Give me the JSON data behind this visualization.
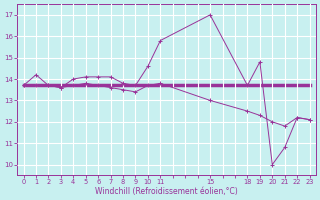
{
  "xlabel": "Windchill (Refroidissement éolien,°C)",
  "bg_color": "#c8f0f0",
  "line_color": "#993399",
  "grid_color": "#ffffff",
  "ylim": [
    9.5,
    17.5
  ],
  "yticks": [
    10,
    11,
    12,
    13,
    14,
    15,
    16,
    17
  ],
  "xtick_labels": [
    "0",
    "1",
    "2",
    "3",
    "4",
    "5",
    "6",
    "7",
    "8",
    "9",
    "10",
    "11",
    "",
    "",
    "",
    "15",
    "",
    "",
    "18",
    "19",
    "20",
    "21",
    "22",
    "23"
  ],
  "series1_x": [
    0,
    1,
    2,
    3,
    4,
    5,
    6,
    7,
    8,
    9,
    10,
    11,
    15,
    18,
    19,
    20,
    21,
    22,
    23
  ],
  "series1_y": [
    13.7,
    14.2,
    13.7,
    13.6,
    14.0,
    14.1,
    14.1,
    14.1,
    13.8,
    13.7,
    14.6,
    15.8,
    17.0,
    13.7,
    14.8,
    10.0,
    10.8,
    12.2,
    12.1
  ],
  "series2_x": [
    0,
    1,
    2,
    3,
    4,
    5,
    6,
    7,
    8,
    9,
    10,
    11,
    12,
    13,
    14,
    15,
    16,
    17,
    18,
    19,
    20,
    21,
    22,
    23
  ],
  "series2_y": [
    13.7,
    13.7,
    13.7,
    13.7,
    13.7,
    13.7,
    13.7,
    13.7,
    13.7,
    13.7,
    13.7,
    13.7,
    13.7,
    13.7,
    13.7,
    13.7,
    13.7,
    13.7,
    13.7,
    13.7,
    13.7,
    13.7,
    13.7,
    13.7
  ],
  "series3_x": [
    0,
    1,
    2,
    3,
    4,
    5,
    6,
    7,
    8,
    9,
    10,
    11,
    15,
    18,
    19,
    20,
    21,
    22,
    23
  ],
  "series3_y": [
    13.7,
    13.7,
    13.7,
    13.6,
    13.7,
    13.8,
    13.7,
    13.6,
    13.5,
    13.4,
    13.7,
    13.8,
    13.0,
    12.5,
    12.3,
    12.0,
    11.8,
    12.2,
    12.1
  ]
}
